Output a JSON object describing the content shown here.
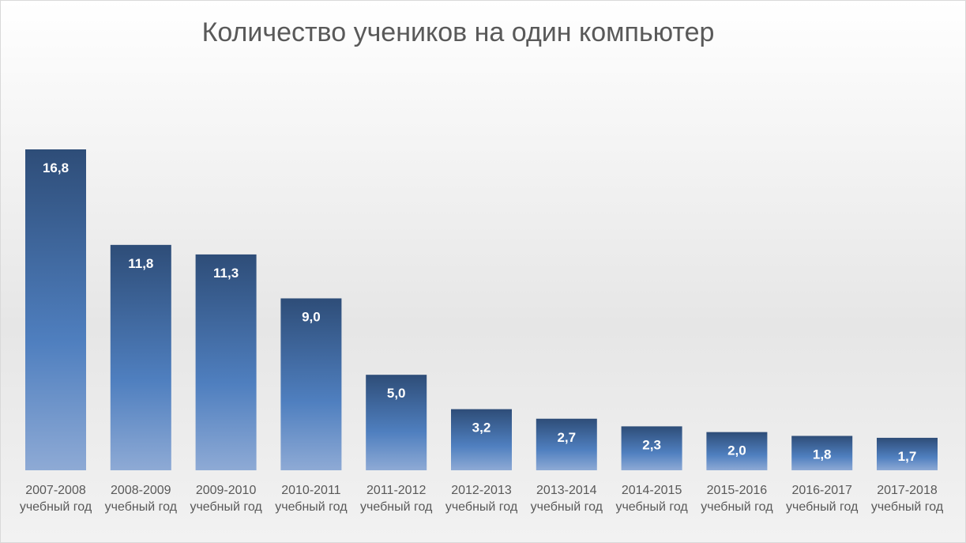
{
  "chart_data": {
    "type": "bar",
    "title": "Количество учеников на один компьютер",
    "categories": [
      [
        "2007-2008",
        "учебный год"
      ],
      [
        "2008-2009",
        "учебный год"
      ],
      [
        "2009-2010",
        "учебный год"
      ],
      [
        "2010-2011",
        "учебный год"
      ],
      [
        "2011-2012",
        "учебный год"
      ],
      [
        "2012-2013",
        "учебный год"
      ],
      [
        "2013-2014",
        "учебный год"
      ],
      [
        "2014-2015",
        "учебный год"
      ],
      [
        "2015-2016",
        "учебный год"
      ],
      [
        "2016-2017",
        "учебный год"
      ],
      [
        "2017-2018",
        "учебный год"
      ]
    ],
    "values": [
      16.8,
      11.8,
      11.3,
      9.0,
      5.0,
      3.2,
      2.7,
      2.3,
      2.0,
      1.8,
      1.7
    ],
    "value_labels": [
      "16,8",
      "11,8",
      "11,3",
      "9,0",
      "5,0",
      "3,2",
      "2,7",
      "2,3",
      "2,0",
      "1,8",
      "1,7"
    ],
    "xlabel": "",
    "ylabel": "",
    "ylim": [
      0,
      18
    ],
    "grid": false,
    "legend": "none",
    "colors": {
      "bar_top": "#2e4d78",
      "bar_mid": "#4f7fbf",
      "bar_bottom": "#8eaad5"
    }
  }
}
